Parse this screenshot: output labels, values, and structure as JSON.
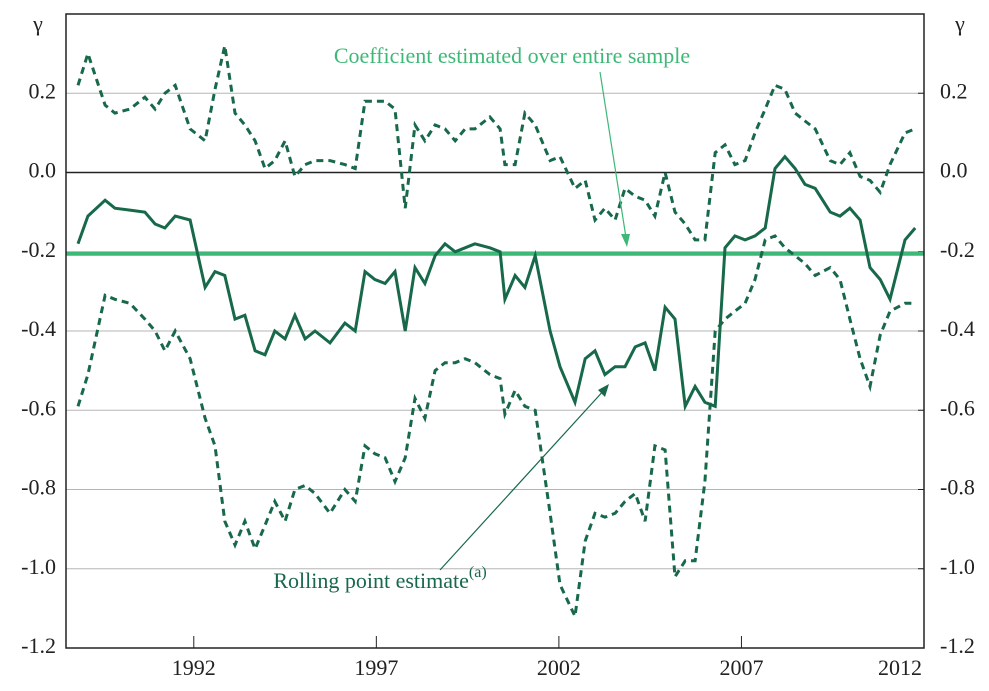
{
  "chart_data": {
    "type": "line",
    "y_axis_label": "γ",
    "y2_axis_label": "γ",
    "xlim": [
      1988.5,
      2012
    ],
    "xticks": [
      1992,
      1997,
      2002,
      2007,
      2012
    ],
    "ylim": [
      -1.2,
      0.4
    ],
    "yticks": [
      0.2,
      {
        "value": 0,
        "label": "0.0"
      },
      -0.2,
      -0.4,
      -0.6,
      -0.8,
      {
        "value": -1,
        "label": "-1.0"
      },
      -1.2
    ],
    "y2lim": [
      -1.2,
      0.4
    ],
    "y2ticks": [
      0.2,
      {
        "value": 0,
        "label": "0.0"
      },
      -0.2,
      -0.4,
      -0.6,
      -0.8,
      {
        "value": -1,
        "label": "-1.0"
      },
      -1.2
    ],
    "grid": true,
    "x": [
      1988.83,
      1989.1,
      1989.57,
      1989.84,
      1990.25,
      1990.66,
      1990.94,
      1991.21,
      1991.49,
      1991.9,
      1992.31,
      1992.58,
      1992.85,
      1993.13,
      1993.4,
      1993.68,
      1993.95,
      1994.22,
      1994.5,
      1994.77,
      1995.05,
      1995.32,
      1995.73,
      1996.14,
      1996.42,
      1996.69,
      1996.96,
      1997.24,
      1997.51,
      1997.79,
      1998.06,
      1998.33,
      1998.61,
      1998.88,
      1999.16,
      1999.43,
      1999.7,
      2000.11,
      2000.39,
      2000.52,
      2000.8,
      2001.07,
      2001.35,
      2001.76,
      2002.03,
      2002.44,
      2002.72,
      2002.99,
      2003.26,
      2003.54,
      2003.81,
      2004.09,
      2004.36,
      2004.63,
      2004.91,
      2005.18,
      2005.46,
      2005.73,
      2006.0,
      2006.28,
      2006.55,
      2006.82,
      2007.1,
      2007.37,
      2007.65,
      2007.92,
      2008.19,
      2008.47,
      2008.74,
      2009.02,
      2009.43,
      2009.7,
      2009.97,
      2010.25,
      2010.52,
      2010.8,
      2011.07,
      2011.48,
      2011.76
    ],
    "series": [
      {
        "color": "#17694a",
        "dash": false,
        "values": [
          -0.18,
          -0.11,
          -0.07,
          -0.09,
          -0.095,
          -0.1,
          -0.13,
          -0.14,
          -0.11,
          -0.12,
          -0.29,
          -0.25,
          -0.26,
          -0.37,
          -0.36,
          -0.45,
          -0.46,
          -0.4,
          -0.42,
          -0.36,
          -0.42,
          -0.4,
          -0.43,
          -0.38,
          -0.4,
          -0.25,
          -0.27,
          -0.28,
          -0.25,
          -0.4,
          -0.24,
          -0.28,
          -0.21,
          -0.18,
          -0.2,
          -0.19,
          -0.18,
          -0.19,
          -0.2,
          -0.32,
          -0.26,
          -0.29,
          -0.21,
          -0.4,
          -0.49,
          -0.58,
          -0.47,
          -0.45,
          -0.51,
          -0.49,
          -0.49,
          -0.44,
          -0.43,
          -0.5,
          -0.34,
          -0.37,
          -0.59,
          -0.54,
          -0.58,
          -0.59,
          -0.19,
          -0.16,
          -0.17,
          -0.16,
          -0.14,
          0.01,
          0.04,
          0.01,
          -0.03,
          -0.04,
          -0.1,
          -0.11,
          -0.09,
          -0.12,
          -0.24,
          -0.27,
          -0.32,
          -0.17,
          -0.14
        ]
      },
      {
        "color": "#17694a",
        "dash": true,
        "values": [
          0.22,
          0.3,
          0.17,
          0.15,
          0.16,
          0.19,
          0.16,
          0.2,
          0.22,
          0.11,
          0.08,
          0.21,
          0.32,
          0.15,
          0.12,
          0.08,
          0.01,
          0.03,
          0.08,
          -0.01,
          0.02,
          0.03,
          0.03,
          0.02,
          0.01,
          0.18,
          0.18,
          0.18,
          0.16,
          -0.09,
          0.12,
          0.08,
          0.12,
          0.11,
          0.08,
          0.11,
          0.11,
          0.14,
          0.11,
          0.02,
          0.02,
          0.15,
          0.12,
          0.03,
          0.04,
          -0.04,
          -0.02,
          -0.12,
          -0.09,
          -0.12,
          -0.04,
          -0.06,
          -0.07,
          -0.11,
          0.0,
          -0.1,
          -0.13,
          -0.17,
          -0.17,
          0.05,
          0.07,
          0.02,
          0.03,
          0.1,
          0.16,
          0.22,
          0.21,
          0.15,
          0.13,
          0.11,
          0.03,
          0.02,
          0.05,
          -0.01,
          -0.02,
          -0.05,
          0.02,
          0.1,
          0.11
        ]
      },
      {
        "color": "#17694a",
        "dash": true,
        "values": [
          -0.59,
          -0.51,
          -0.31,
          -0.32,
          -0.33,
          -0.37,
          -0.4,
          -0.45,
          -0.4,
          -0.47,
          -0.62,
          -0.69,
          -0.88,
          -0.94,
          -0.88,
          -0.95,
          -0.89,
          -0.83,
          -0.88,
          -0.8,
          -0.79,
          -0.81,
          -0.86,
          -0.8,
          -0.83,
          -0.69,
          -0.71,
          -0.72,
          -0.78,
          -0.72,
          -0.57,
          -0.62,
          -0.5,
          -0.48,
          -0.48,
          -0.47,
          -0.48,
          -0.51,
          -0.52,
          -0.61,
          -0.55,
          -0.59,
          -0.6,
          -0.86,
          -1.04,
          -1.12,
          -0.93,
          -0.86,
          -0.87,
          -0.86,
          -0.83,
          -0.81,
          -0.88,
          -0.69,
          -0.7,
          -1.02,
          -0.98,
          -0.98,
          -0.78,
          -0.4,
          -0.37,
          -0.35,
          -0.33,
          -0.27,
          -0.17,
          -0.16,
          -0.19,
          -0.21,
          -0.23,
          -0.26,
          -0.24,
          -0.27,
          -0.37,
          -0.47,
          -0.54,
          -0.41,
          -0.35,
          -0.33,
          -0.33
        ]
      }
    ],
    "reference_line": {
      "value": -0.205,
      "color": "#3db877"
    },
    "annotations": [
      {
        "text": "Coefficient estimated over entire sample",
        "color": "#3db877"
      },
      {
        "text": "Rolling point estimate",
        "superscript": "(a)",
        "color": "#17694a"
      }
    ]
  }
}
